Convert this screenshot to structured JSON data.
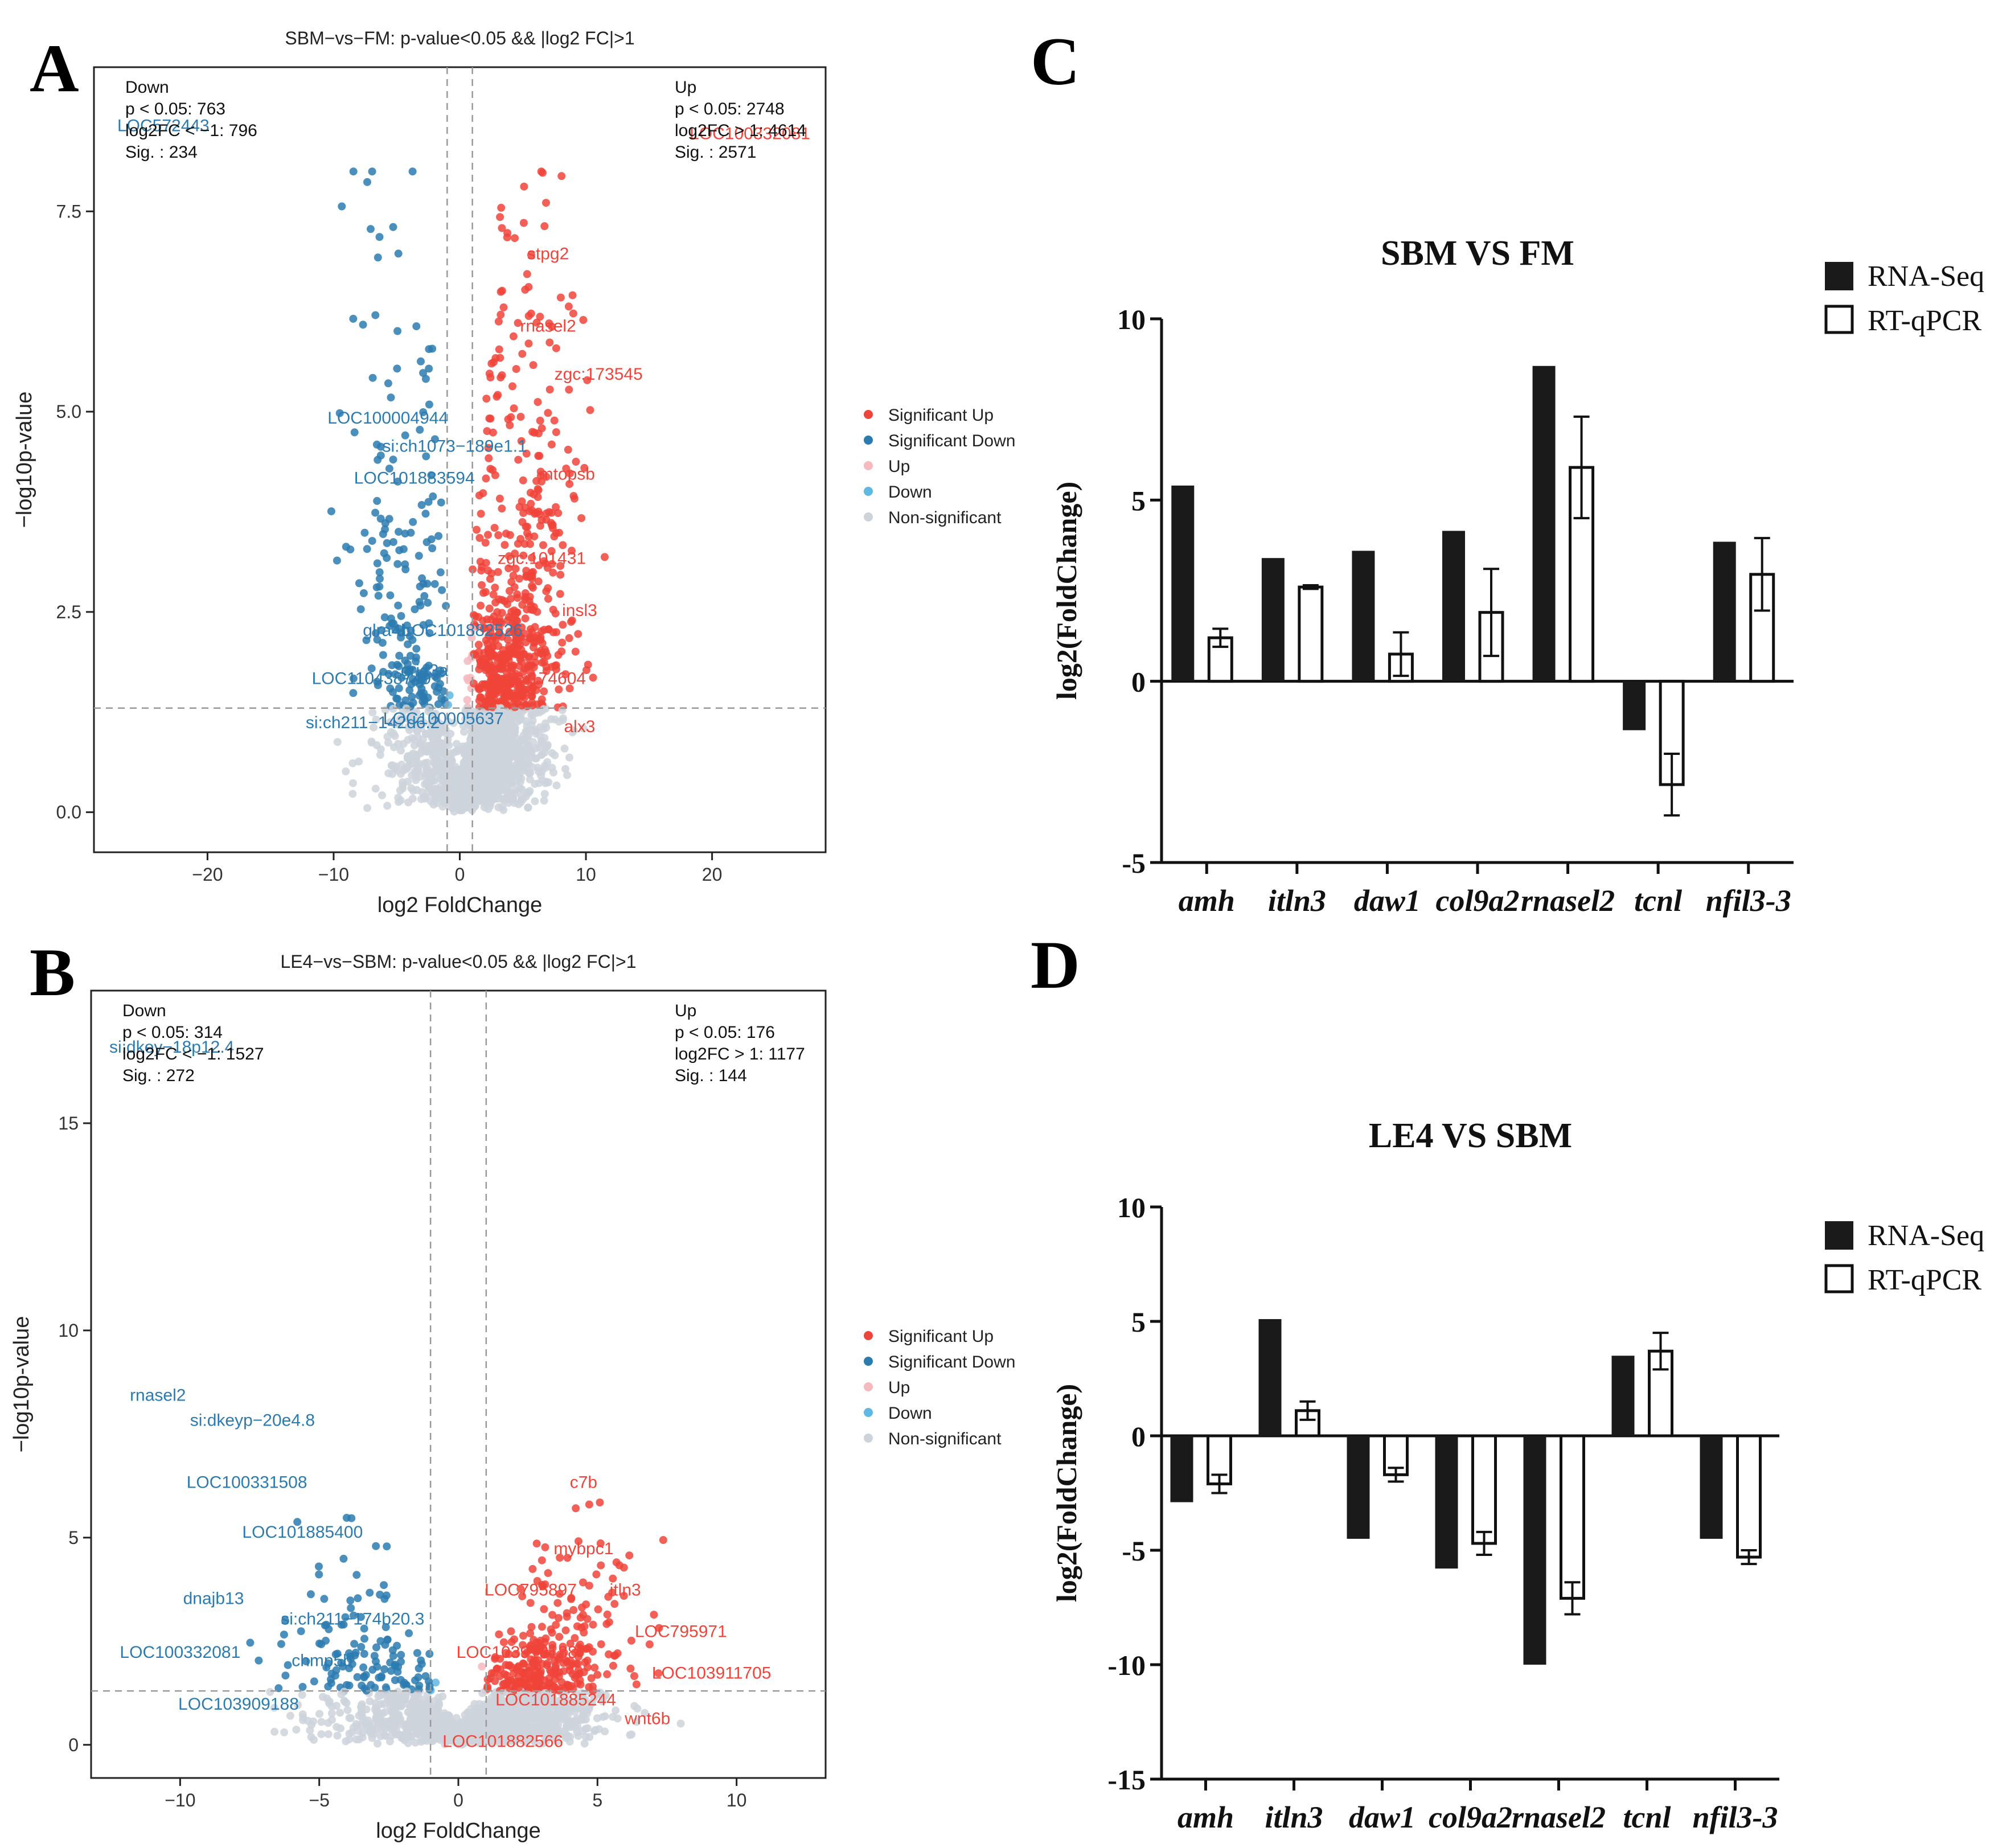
{
  "panel_letters": {
    "a": "A",
    "b": "B",
    "c": "C",
    "d": "D"
  },
  "legend_volcano": [
    "Significant Up",
    "Significant Down",
    "Up",
    "Down",
    "Non-significant"
  ],
  "legend_bar": [
    "RNA-Seq",
    "RT-qPCR"
  ],
  "colors": {
    "sig_up": "#f0443a",
    "sig_down": "#2c7bb0",
    "up": "#f6b9be",
    "down": "#5fb7e4",
    "nonsig": "#cdd3da",
    "bar_fill": "#1a1a1a"
  },
  "chart_data": [
    {
      "type": "scatter",
      "panel": "A",
      "title": "SBM−vs−FM: p-value<0.05 && |log2 FC|>1",
      "xlabel": "log2 FoldChange",
      "ylabel": "−log10p-value",
      "xlim": [
        -29,
        29
      ],
      "ylim": [
        -0.5,
        9.3
      ],
      "xticks": [
        -20,
        -10,
        0,
        10,
        20
      ],
      "xtick_labels": [
        "−20",
        "−10",
        "0",
        "10",
        "20"
      ],
      "yticks": [
        0,
        2.5,
        5,
        7.5
      ],
      "ytick_labels": [
        "0.0",
        "2.5",
        "5.0",
        "7.5"
      ],
      "thresholds": {
        "x": [
          -1,
          1
        ],
        "y": 1.3
      },
      "stats_down": {
        "title": "Down",
        "lines": [
          "p < 0.05: 763",
          "log2FC < −1: 796",
          "Sig. : 234"
        ]
      },
      "stats_up": {
        "title": "Up",
        "lines": [
          "p < 0.05: 2748",
          "log2FC > 1: 4614",
          "Sig. : 2571"
        ]
      },
      "labels_down": [
        {
          "text": "LOC572443",
          "x": -23.5,
          "y": 8.5
        },
        {
          "text": "LOC100004944",
          "x": -5.7,
          "y": 4.85
        },
        {
          "text": "si:ch1073−189e1.1",
          "x": -0.4,
          "y": 4.5
        },
        {
          "text": "LOC101883594",
          "x": -3.6,
          "y": 4.1
        },
        {
          "text": "glra4b",
          "x": -5.8,
          "y": 2.2
        },
        {
          "text": "LOC101882526",
          "x": 0.2,
          "y": 2.2
        },
        {
          "text": "LOC110438749",
          "x": -7.0,
          "y": 1.6
        },
        {
          "text": "gria3a",
          "x": -2.8,
          "y": 1.7
        },
        {
          "text": "si:ch211−142d6.2",
          "x": -6.9,
          "y": 1.05
        },
        {
          "text": "LOC100005637",
          "x": -1.3,
          "y": 1.1
        }
      ],
      "labels_up": [
        {
          "text": "LOC100332081",
          "x": 23,
          "y": 8.4
        },
        {
          "text": "stpg2",
          "x": 7,
          "y": 6.9
        },
        {
          "text": "rnasel2",
          "x": 7,
          "y": 6.0
        },
        {
          "text": "zgc:173545",
          "x": 11,
          "y": 5.4
        },
        {
          "text": "mtopsb",
          "x": 8.5,
          "y": 4.15
        },
        {
          "text": "zgc:101431",
          "x": 6.5,
          "y": 3.1
        },
        {
          "text": "insl3",
          "x": 9.5,
          "y": 2.45
        },
        {
          "text": "zgc:174604",
          "x": 6.5,
          "y": 1.6
        },
        {
          "text": "alx3",
          "x": 9.5,
          "y": 1.0
        }
      ]
    },
    {
      "type": "scatter",
      "panel": "B",
      "title": "LE4−vs−SBM: p-value<0.05 && |log2 FC|>1",
      "xlabel": "log2 FoldChange",
      "ylabel": "−log10p-value",
      "xlim": [
        -13.2,
        13.2
      ],
      "ylim": [
        -0.8,
        18.2
      ],
      "xticks": [
        -10,
        -5,
        0,
        5,
        10
      ],
      "xtick_labels": [
        "−10",
        "−5",
        "0",
        "5",
        "10"
      ],
      "yticks": [
        0,
        5,
        10,
        15
      ],
      "ytick_labels": [
        "0",
        "5",
        "10",
        "15"
      ],
      "thresholds": {
        "x": [
          -1,
          1
        ],
        "y": 1.3
      },
      "stats_down": {
        "title": "Down",
        "lines": [
          "p < 0.05: 314",
          "log2FC < −1: 1527",
          "Sig. : 272"
        ]
      },
      "stats_up": {
        "title": "Up",
        "lines": [
          "p < 0.05: 176",
          "log2FC > 1: 1177",
          "Sig. : 144"
        ]
      },
      "labels_down": [
        {
          "text": "si:dkey−18p12.4",
          "x": -10.3,
          "y": 16.7
        },
        {
          "text": "rnasel2",
          "x": -10.8,
          "y": 8.3
        },
        {
          "text": "si:dkeyp−20e4.8",
          "x": -7.4,
          "y": 7.7
        },
        {
          "text": "LOC100331508",
          "x": -7.6,
          "y": 6.2
        },
        {
          "text": "LOC101885400",
          "x": -5.6,
          "y": 5.0
        },
        {
          "text": "dnajb13",
          "x": -8.8,
          "y": 3.4
        },
        {
          "text": "si:ch211−174b20.3",
          "x": -3.8,
          "y": 2.9
        },
        {
          "text": "LOC100332081",
          "x": -10.0,
          "y": 2.1
        },
        {
          "text": "chmp5b",
          "x": -4.9,
          "y": 1.9
        },
        {
          "text": "LOC103909188",
          "x": -7.9,
          "y": 0.85
        }
      ],
      "labels_up": [
        {
          "text": "c7b",
          "x": 4.5,
          "y": 6.2
        },
        {
          "text": "mybpc1",
          "x": 4.5,
          "y": 4.6
        },
        {
          "text": "LOC795897",
          "x": 2.6,
          "y": 3.6
        },
        {
          "text": "itln3",
          "x": 6.0,
          "y": 3.6
        },
        {
          "text": "LOC795971",
          "x": 8.0,
          "y": 2.6
        },
        {
          "text": "LOC103910188",
          "x": 2.1,
          "y": 2.1
        },
        {
          "text": "LOC103911705",
          "x": 9.1,
          "y": 1.6
        },
        {
          "text": "LOC101885244",
          "x": 3.5,
          "y": 0.95
        },
        {
          "text": "wnt6b",
          "x": 6.8,
          "y": 0.5
        },
        {
          "text": "LOC101882566",
          "x": 1.6,
          "y": -0.05
        }
      ]
    },
    {
      "type": "bar",
      "panel": "C",
      "title": "SBM VS FM",
      "ylabel": "log2(FoldChange)",
      "ylim": [
        -5,
        10
      ],
      "yticks": [
        -5,
        0,
        5,
        10
      ],
      "ytick_labels": [
        "-5",
        "0",
        "5",
        "10"
      ],
      "categories": [
        "amh",
        "itln3",
        "daw1",
        "col9a2",
        "rnasel2",
        "tcnl",
        "nfil3-3"
      ],
      "series": [
        {
          "name": "RNA-Seq",
          "values": [
            5.4,
            3.4,
            3.6,
            4.15,
            8.7,
            -1.35,
            3.85
          ]
        },
        {
          "name": "RT-qPCR",
          "values": [
            1.2,
            2.6,
            0.75,
            1.9,
            5.9,
            -2.85,
            2.95
          ],
          "errors": [
            0.25,
            0.05,
            0.6,
            1.2,
            1.4,
            0.85,
            1.0
          ]
        }
      ]
    },
    {
      "type": "bar",
      "panel": "D",
      "title": "LE4 VS SBM",
      "ylabel": "log2(FoldChange)",
      "ylim": [
        -15,
        10
      ],
      "yticks": [
        -15,
        -10,
        -5,
        0,
        5,
        10
      ],
      "ytick_labels": [
        "-15",
        "-10",
        "-5",
        "0",
        "5",
        "10"
      ],
      "categories": [
        "amh",
        "itln3",
        "daw1",
        "col9a2",
        "rnasel2",
        "tcnl",
        "nfil3-3"
      ],
      "series": [
        {
          "name": "RNA-Seq",
          "values": [
            -2.9,
            5.1,
            -4.5,
            -5.8,
            -10.0,
            3.5,
            -4.5
          ]
        },
        {
          "name": "RT-qPCR",
          "values": [
            -2.1,
            1.1,
            -1.7,
            -4.7,
            -7.1,
            3.7,
            -5.3
          ],
          "errors": [
            0.4,
            0.4,
            0.3,
            0.5,
            0.7,
            0.8,
            0.3
          ]
        }
      ]
    }
  ]
}
